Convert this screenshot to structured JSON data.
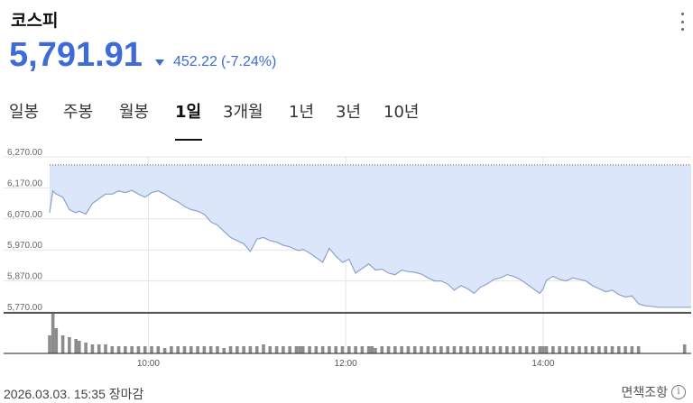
{
  "header": {
    "title": "코스피",
    "price": "5,791.91",
    "change_amount": "452.22",
    "change_percent": "(-7.24%)",
    "direction": "down"
  },
  "tabs": [
    {
      "label": "일봉",
      "active": false
    },
    {
      "label": "주봉",
      "active": false
    },
    {
      "label": "월봉",
      "active": false
    },
    {
      "label": "1일",
      "active": true
    },
    {
      "label": "3개월",
      "active": false
    },
    {
      "label": "1년",
      "active": false
    },
    {
      "label": "3년",
      "active": false
    },
    {
      "label": "10년",
      "active": false
    }
  ],
  "footer": {
    "date_text": "2026.03.03. 15:35 장마감",
    "disclaimer": "면책조항"
  },
  "colors": {
    "accent": "#3d6bd8",
    "area_fill": "#dbe6fb",
    "line": "#8aa3cf",
    "volume_bar": "#8c8c8c",
    "grid": "#e4e4e4"
  },
  "chart_data": {
    "type": "line",
    "ylim": [
      5770,
      6270
    ],
    "y_ticks": [
      "6,270.00",
      "6,170.00",
      "6,070.00",
      "5,970.00",
      "5,870.00",
      "5,770.00"
    ],
    "y_tick_values": [
      6270,
      6170,
      6070,
      5970,
      5870,
      5770
    ],
    "x_ticks": [
      "10:00",
      "12:00",
      "14:00"
    ],
    "x_tick_values": [
      60,
      180,
      300
    ],
    "xlim": [
      0,
      390
    ],
    "previous_close": 6244.13,
    "x": [
      0,
      2,
      4,
      8,
      12,
      16,
      18,
      22,
      26,
      30,
      34,
      38,
      42,
      46,
      50,
      54,
      58,
      62,
      66,
      70,
      74,
      78,
      82,
      86,
      90,
      94,
      98,
      102,
      106,
      110,
      114,
      118,
      122,
      126,
      130,
      134,
      138,
      142,
      146,
      150,
      152,
      154,
      158,
      162,
      166,
      170,
      174,
      178,
      182,
      186,
      190,
      194,
      196,
      198,
      202,
      206,
      210,
      214,
      218,
      222,
      226,
      230,
      234,
      238,
      242,
      246,
      250,
      254,
      258,
      262,
      266,
      270,
      274,
      278,
      282,
      286,
      290,
      294,
      298,
      300,
      302,
      306,
      310,
      314,
      318,
      322,
      326,
      330,
      334,
      338,
      342,
      346,
      350,
      354,
      358,
      362,
      366,
      370,
      374,
      378,
      382,
      386,
      390
    ],
    "y": [
      6090,
      6160,
      6150,
      6140,
      6100,
      6090,
      6095,
      6085,
      6120,
      6135,
      6150,
      6150,
      6160,
      6155,
      6162,
      6150,
      6140,
      6155,
      6160,
      6150,
      6135,
      6125,
      6110,
      6100,
      6095,
      6085,
      6060,
      6050,
      6030,
      6010,
      6000,
      5990,
      5965,
      6005,
      6010,
      6000,
      5995,
      5985,
      5980,
      5970,
      5968,
      5972,
      5960,
      5945,
      5930,
      5975,
      5950,
      5930,
      5940,
      5895,
      5910,
      5925,
      5915,
      5905,
      5908,
      5895,
      5890,
      5905,
      5900,
      5898,
      5892,
      5880,
      5870,
      5870,
      5860,
      5840,
      5855,
      5845,
      5830,
      5850,
      5860,
      5875,
      5880,
      5890,
      5885,
      5875,
      5860,
      5845,
      5830,
      5845,
      5872,
      5885,
      5875,
      5870,
      5880,
      5875,
      5870,
      5855,
      5845,
      5835,
      5840,
      5826,
      5818,
      5822,
      5796,
      5790,
      5788,
      5785,
      5785,
      5785,
      5785,
      5785,
      5785
    ],
    "volume": [
      10,
      22,
      14,
      10,
      9,
      8,
      7,
      6,
      5,
      5,
      5,
      4,
      4,
      4,
      4,
      4,
      4,
      4,
      4,
      3,
      4,
      4,
      4,
      4,
      4,
      4,
      4,
      4,
      3,
      4,
      4,
      4,
      4,
      4,
      5,
      4,
      4,
      4,
      4,
      4,
      4,
      4,
      4,
      4,
      4,
      4,
      4,
      4,
      4,
      4,
      4,
      4,
      4,
      3,
      4,
      4,
      4,
      4,
      4,
      4,
      4,
      4,
      4,
      4,
      4,
      4,
      4,
      4,
      4,
      4,
      4,
      4,
      4,
      4,
      4,
      4,
      4,
      4,
      4,
      4,
      4,
      4,
      4,
      4,
      4,
      4,
      4,
      4,
      4,
      4,
      4,
      4,
      4,
      4,
      4,
      0,
      0,
      0,
      0,
      0,
      0,
      5,
      0
    ]
  }
}
